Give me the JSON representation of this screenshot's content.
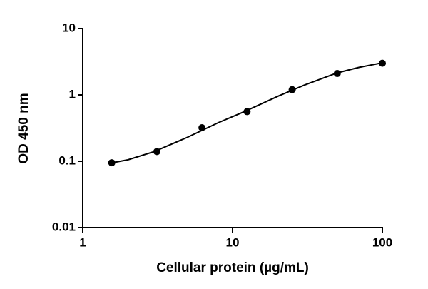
{
  "chart_data": {
    "type": "scatter",
    "xlabel": "Cellular protein (µg/mL)",
    "ylabel": "OD 450 nm",
    "xscale": "log",
    "yscale": "log",
    "xlim": [
      1,
      100
    ],
    "ylim": [
      0.01,
      10
    ],
    "xticks": [
      1,
      10,
      100
    ],
    "yticks": [
      0.01,
      0.1,
      1,
      10
    ],
    "series": [
      {
        "color": "#000000",
        "x": [
          1.5625,
          3.125,
          6.25,
          12.5,
          25,
          50,
          100
        ],
        "values": [
          0.095,
          0.14,
          0.32,
          0.56,
          1.2,
          2.1,
          3.0
        ]
      }
    ],
    "curve": {
      "color": "#000000",
      "x": [
        1.5,
        2,
        3,
        5,
        8,
        12,
        20,
        30,
        50,
        70,
        100
      ],
      "values": [
        0.093,
        0.105,
        0.14,
        0.23,
        0.38,
        0.56,
        0.95,
        1.4,
        2.15,
        2.6,
        3.05
      ]
    }
  }
}
